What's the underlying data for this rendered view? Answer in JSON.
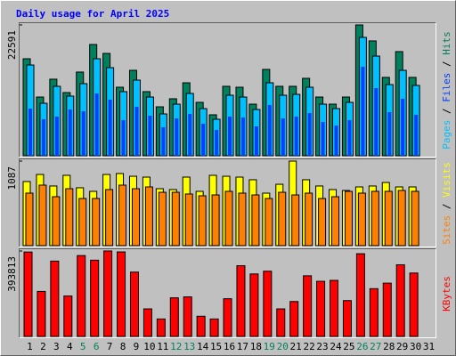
{
  "title": "Daily usage for April 2025",
  "legend_separator": " / ",
  "chart_data": [
    {
      "type": "bar",
      "categories": [
        "1",
        "2",
        "3",
        "4",
        "5",
        "6",
        "7",
        "8",
        "9",
        "10",
        "11",
        "12",
        "13",
        "14",
        "15",
        "16",
        "17",
        "18",
        "19",
        "20",
        "21",
        "22",
        "23",
        "24",
        "25",
        "26",
        "27",
        "28",
        "29",
        "30",
        "31"
      ],
      "ylim": [
        0,
        22591
      ],
      "yticks": [
        22591
      ],
      "series": [
        {
          "name": "Hits",
          "color": "#00805c",
          "values": [
            16750,
            10140,
            13220,
            10910,
            14450,
            19210,
            17670,
            11830,
            14750,
            11070,
            8450,
            9840,
            12600,
            9220,
            7070,
            11990,
            11830,
            8910,
            14910,
            11990,
            11990,
            13370,
            10140,
            8910,
            10140,
            22591,
            19830,
            13530,
            17980,
            13530,
            null
          ]
        },
        {
          "name": "Pages",
          "color": "#00c0ff",
          "values": [
            15670,
            9060,
            11990,
            10300,
            12450,
            16750,
            15210,
            11070,
            13060,
            10140,
            7220,
            8910,
            10760,
            8140,
            6300,
            10450,
            10140,
            7990,
            12600,
            10450,
            10600,
            11830,
            8910,
            8140,
            9220,
            20440,
            17210,
            12290,
            14750,
            12140,
            null
          ]
        },
        {
          "name": "Files",
          "color": "#0040ff",
          "values": [
            8140,
            6300,
            6760,
            7990,
            7680,
            10760,
            9680,
            6150,
            8450,
            6910,
            4920,
            6450,
            7220,
            5530,
            4460,
            6760,
            6610,
            5070,
            8760,
            6450,
            6760,
            7370,
            5840,
            5220,
            6150,
            15370,
            11680,
            7530,
            9840,
            7070,
            null
          ]
        }
      ]
    },
    {
      "type": "bar",
      "categories": [
        "1",
        "2",
        "3",
        "4",
        "5",
        "6",
        "7",
        "8",
        "9",
        "10",
        "11",
        "12",
        "13",
        "14",
        "15",
        "16",
        "17",
        "18",
        "19",
        "20",
        "21",
        "22",
        "23",
        "24",
        "25",
        "26",
        "27",
        "28",
        "29",
        "30",
        "31"
      ],
      "ylim": [
        0,
        1087
      ],
      "yticks": [
        1087
      ],
      "series": [
        {
          "name": "Visits",
          "color": "#ffff00",
          "values": [
            824,
            915,
            767,
            904,
            744,
            698,
            915,
            927,
            892,
            881,
            732,
            721,
            881,
            698,
            904,
            892,
            881,
            847,
            675,
            789,
            1087,
            847,
            767,
            721,
            709,
            755,
            767,
            812,
            755,
            755,
            null
          ]
        },
        {
          "name": "Sites",
          "color": "#ff8000",
          "values": [
            675,
            778,
            629,
            732,
            606,
            606,
            721,
            778,
            732,
            755,
            686,
            686,
            664,
            641,
            652,
            698,
            675,
            652,
            606,
            686,
            652,
            675,
            606,
            629,
            698,
            675,
            698,
            698,
            709,
            698,
            null
          ]
        }
      ]
    },
    {
      "type": "bar",
      "categories": [
        "1",
        "2",
        "3",
        "4",
        "5",
        "6",
        "7",
        "8",
        "9",
        "10",
        "11",
        "12",
        "13",
        "14",
        "15",
        "16",
        "17",
        "18",
        "19",
        "20",
        "21",
        "22",
        "23",
        "24",
        "25",
        "26",
        "27",
        "28",
        "29",
        "30",
        "31"
      ],
      "category_colors": [
        "#000000",
        "#000000",
        "#000000",
        "#000000",
        "#00805c",
        "#00805c",
        "#000000",
        "#000000",
        "#000000",
        "#000000",
        "#000000",
        "#00805c",
        "#00805c",
        "#000000",
        "#000000",
        "#000000",
        "#000000",
        "#000000",
        "#00805c",
        "#00805c",
        "#000000",
        "#000000",
        "#000000",
        "#000000",
        "#000000",
        "#00805c",
        "#00805c",
        "#000000",
        "#000000",
        "#000000",
        "#000000"
      ],
      "ylim": [
        0,
        393813
      ],
      "yticks": [
        393813
      ],
      "series": [
        {
          "name": "KBytes",
          "color": "#ff0000",
          "values": [
            389000,
            207500,
            347200,
            186300,
            372600,
            351400,
            393813,
            389500,
            296400,
            127000,
            80400,
            177800,
            182100,
            93100,
            80400,
            173600,
            326000,
            287900,
            300600,
            127000,
            160900,
            279400,
            254000,
            258300,
            165100,
            381100,
            220200,
            245600,
            330300,
            292100,
            null
          ]
        }
      ]
    }
  ]
}
